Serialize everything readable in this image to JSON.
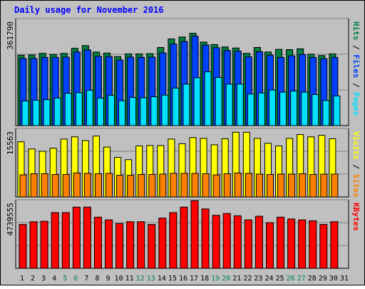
{
  "chart_data": {
    "type": "bar",
    "title": "Daily usage for November 2016",
    "categories": [
      "1",
      "2",
      "3",
      "4",
      "5",
      "6",
      "7",
      "8",
      "9",
      "10",
      "11",
      "12",
      "13",
      "14",
      "15",
      "16",
      "17",
      "18",
      "19",
      "20",
      "21",
      "22",
      "23",
      "24",
      "25",
      "26",
      "27",
      "28",
      "29",
      "30",
      "31"
    ],
    "weekend_days": [
      5,
      6,
      12,
      13,
      19,
      20,
      26,
      27
    ],
    "panels": [
      {
        "ylabel_parts": [
          "Pages",
          "Files",
          "Hits"
        ],
        "ytick_label": "361790",
        "ytick_value": 361790,
        "ylim": [
          0,
          400000
        ],
        "series": [
          {
            "name": "Hits",
            "color": "#008040",
            "values": [
              263000,
              264000,
              270000,
              266000,
              270000,
              289000,
              299000,
              275000,
              271000,
              258000,
              268000,
              268000,
              269000,
              292000,
              324000,
              331000,
              345000,
              312000,
              303000,
              294000,
              290000,
              270000,
              292000,
              275000,
              285000,
              284000,
              287000,
              267000,
              262000,
              268000
            ]
          },
          {
            "name": "Files",
            "color": "#0040ff",
            "values": [
              251000,
              251000,
              255000,
              255000,
              256000,
              275000,
              283000,
              259000,
              258000,
              245000,
              256000,
              255000,
              256000,
              272000,
              305000,
              314000,
              334000,
              301000,
              291000,
              281000,
              278000,
              257000,
              276000,
              263000,
              255000,
              261000,
              266000,
              255000,
              250000,
              255000
            ]
          },
          {
            "name": "Pages",
            "color": "#00e0ff",
            "values": [
              92000,
              95000,
              97000,
              103000,
              121000,
              123000,
              132000,
              103000,
              113000,
              93000,
              105000,
              104000,
              108000,
              114000,
              140000,
              155000,
              179000,
              201000,
              180000,
              155000,
              155000,
              118000,
              122000,
              133000,
              125000,
              129000,
              125000,
              116000,
              94000,
              111000
            ]
          }
        ]
      },
      {
        "ylabel_parts": [
          "Sites",
          "Visits"
        ],
        "ytick_label": "15563",
        "ytick_value": 15563,
        "ylim": [
          0,
          18000
        ],
        "series": [
          {
            "name": "Visits",
            "color": "#ffff00",
            "values": [
              14500,
              12600,
              12000,
              12800,
              15200,
              15800,
              14800,
              16000,
              13100,
              10400,
              9800,
              13400,
              13500,
              13500,
              15200,
              14000,
              15600,
              15400,
              13700,
              15300,
              17000,
              17000,
              15400,
              14100,
              13400,
              15400,
              16400,
              15800,
              16200,
              15300
            ]
          },
          {
            "name": "Sites",
            "color": "#ff8000",
            "values": [
              5800,
              6100,
              6100,
              5900,
              5900,
              6300,
              6200,
              6100,
              6200,
              5700,
              5700,
              5900,
              5900,
              6000,
              6200,
              6200,
              6200,
              6100,
              5800,
              6100,
              6300,
              6200,
              6000,
              5900,
              6000,
              6000,
              6100,
              5900,
              6000,
              6000
            ]
          }
        ]
      },
      {
        "ylabel_parts": [
          "KBytes"
        ],
        "ytick_label": "4739555",
        "ytick_value": 4739555,
        "ylim": [
          0,
          7500000
        ],
        "series": [
          {
            "name": "KBytes",
            "color": "#ff0000",
            "values": [
              4800000,
              5100000,
              5150000,
              6100000,
              6100000,
              6700000,
              6700000,
              5600000,
              5300000,
              4900000,
              5100000,
              5100000,
              4800000,
              5500000,
              6100000,
              6700000,
              7400000,
              6500000,
              5800000,
              6000000,
              5750000,
              5300000,
              5700000,
              5000000,
              5600000,
              5400000,
              5300000,
              5200000,
              4800000,
              5100000
            ]
          }
        ]
      }
    ]
  },
  "colors": {
    "background": "#c0c0c0",
    "title": "#0000ff",
    "weekend_label": "#00805c",
    "weekday_label": "#000000",
    "frame_border": "#000000"
  }
}
